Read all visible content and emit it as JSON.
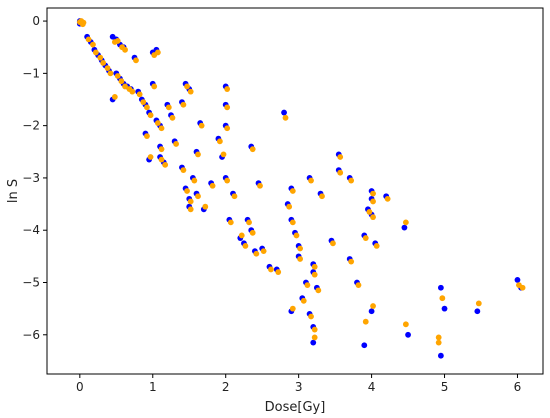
{
  "chart_data": {
    "type": "scatter",
    "title": "",
    "xlabel": "Dose[Gy]",
    "ylabel": "ln S",
    "xlim": [
      -0.45,
      6.35
    ],
    "ylim": [
      -6.75,
      0.25
    ],
    "xticks": [
      0,
      1,
      2,
      3,
      4,
      5,
      6
    ],
    "yticks": [
      0,
      -1,
      -2,
      -3,
      -4,
      -5,
      -6
    ],
    "grid": false,
    "legend": "none",
    "series": [
      {
        "color": "#0000ff",
        "points": [
          [
            0,
            0
          ],
          [
            0,
            -0.05
          ],
          [
            0.02,
            -0.02
          ],
          [
            0.03,
            -0.04
          ],
          [
            0.1,
            -0.3
          ],
          [
            0.15,
            -0.4
          ],
          [
            0.2,
            -0.55
          ],
          [
            0.25,
            -0.65
          ],
          [
            0.3,
            -0.75
          ],
          [
            0.35,
            -0.85
          ],
          [
            0.4,
            -0.95
          ],
          [
            0.45,
            -0.3
          ],
          [
            0.5,
            -0.35
          ],
          [
            0.55,
            -0.45
          ],
          [
            0.6,
            -0.5
          ],
          [
            0.5,
            -1.0
          ],
          [
            0.45,
            -1.5
          ],
          [
            0.55,
            -1.1
          ],
          [
            0.6,
            -1.2
          ],
          [
            0.65,
            -1.25
          ],
          [
            0.7,
            -1.3
          ],
          [
            0.75,
            -0.7
          ],
          [
            0.8,
            -1.35
          ],
          [
            0.85,
            -1.5
          ],
          [
            0.9,
            -1.6
          ],
          [
            0.95,
            -1.75
          ],
          [
            1.0,
            -0.6
          ],
          [
            1.05,
            -0.55
          ],
          [
            1.0,
            -1.2
          ],
          [
            1.05,
            -1.9
          ],
          [
            1.1,
            -2.0
          ],
          [
            1.1,
            -2.4
          ],
          [
            0.9,
            -2.15
          ],
          [
            0.95,
            -2.65
          ],
          [
            1.1,
            -2.6
          ],
          [
            1.15,
            -2.7
          ],
          [
            1.2,
            -1.6
          ],
          [
            1.25,
            -1.8
          ],
          [
            1.3,
            -2.3
          ],
          [
            1.4,
            -1.55
          ],
          [
            1.4,
            -2.8
          ],
          [
            1.45,
            -1.2
          ],
          [
            1.5,
            -1.3
          ],
          [
            1.45,
            -3.2
          ],
          [
            1.5,
            -3.4
          ],
          [
            1.5,
            -3.55
          ],
          [
            1.55,
            -3.0
          ],
          [
            1.6,
            -2.5
          ],
          [
            1.6,
            -3.3
          ],
          [
            1.65,
            -1.95
          ],
          [
            1.7,
            -3.6
          ],
          [
            1.8,
            -3.1
          ],
          [
            1.9,
            -2.25
          ],
          [
            1.95,
            -2.6
          ],
          [
            2.0,
            -1.25
          ],
          [
            2.0,
            -1.6
          ],
          [
            2.0,
            -2.0
          ],
          [
            2.0,
            -3.0
          ],
          [
            2.05,
            -3.8
          ],
          [
            2.1,
            -3.3
          ],
          [
            2.2,
            -4.15
          ],
          [
            2.25,
            -4.25
          ],
          [
            2.3,
            -3.8
          ],
          [
            2.35,
            -2.4
          ],
          [
            2.35,
            -4.0
          ],
          [
            2.4,
            -4.4
          ],
          [
            2.45,
            -3.1
          ],
          [
            2.5,
            -4.35
          ],
          [
            2.6,
            -4.7
          ],
          [
            2.7,
            -4.75
          ],
          [
            2.8,
            -1.75
          ],
          [
            2.85,
            -3.5
          ],
          [
            2.9,
            -3.2
          ],
          [
            2.9,
            -3.8
          ],
          [
            2.95,
            -4.05
          ],
          [
            3.0,
            -4.3
          ],
          [
            3.0,
            -4.5
          ],
          [
            2.9,
            -5.55
          ],
          [
            3.05,
            -5.3
          ],
          [
            3.1,
            -5.0
          ],
          [
            3.15,
            -5.6
          ],
          [
            3.2,
            -5.85
          ],
          [
            3.2,
            -6.15
          ],
          [
            3.2,
            -4.65
          ],
          [
            3.15,
            -3.0
          ],
          [
            3.2,
            -4.8
          ],
          [
            3.25,
            -5.1
          ],
          [
            3.3,
            -3.3
          ],
          [
            3.45,
            -4.2
          ],
          [
            3.55,
            -2.55
          ],
          [
            3.55,
            -2.85
          ],
          [
            3.7,
            -3.0
          ],
          [
            3.7,
            -4.55
          ],
          [
            3.8,
            -5.0
          ],
          [
            3.9,
            -4.1
          ],
          [
            3.9,
            -6.2
          ],
          [
            3.95,
            -3.6
          ],
          [
            4.0,
            -3.25
          ],
          [
            4.0,
            -3.4
          ],
          [
            4.0,
            -3.7
          ],
          [
            4.0,
            -5.55
          ],
          [
            4.05,
            -4.25
          ],
          [
            4.2,
            -3.35
          ],
          [
            4.45,
            -3.95
          ],
          [
            4.5,
            -6.0
          ],
          [
            4.95,
            -5.1
          ],
          [
            4.95,
            -6.4
          ],
          [
            5.0,
            -5.5
          ],
          [
            5.45,
            -5.55
          ],
          [
            6.0,
            -4.95
          ],
          [
            6.05,
            -5.1
          ]
        ]
      },
      {
        "color": "#ffa500",
        "points": [
          [
            0,
            -0.02
          ],
          [
            0.02,
            0
          ],
          [
            0.04,
            -0.06
          ],
          [
            0.05,
            -0.03
          ],
          [
            0.12,
            -0.35
          ],
          [
            0.18,
            -0.45
          ],
          [
            0.22,
            -0.6
          ],
          [
            0.28,
            -0.7
          ],
          [
            0.32,
            -0.8
          ],
          [
            0.38,
            -0.9
          ],
          [
            0.42,
            -1.0
          ],
          [
            0.48,
            -0.4
          ],
          [
            0.52,
            -0.38
          ],
          [
            0.58,
            -0.5
          ],
          [
            0.62,
            -0.55
          ],
          [
            0.52,
            -1.05
          ],
          [
            0.48,
            -1.45
          ],
          [
            0.57,
            -1.15
          ],
          [
            0.62,
            -1.25
          ],
          [
            0.68,
            -1.3
          ],
          [
            0.72,
            -1.35
          ],
          [
            0.77,
            -0.75
          ],
          [
            0.82,
            -1.4
          ],
          [
            0.87,
            -1.55
          ],
          [
            0.92,
            -1.65
          ],
          [
            0.97,
            -1.8
          ],
          [
            1.02,
            -0.65
          ],
          [
            1.07,
            -0.6
          ],
          [
            1.02,
            -1.25
          ],
          [
            1.07,
            -1.95
          ],
          [
            1.12,
            -2.05
          ],
          [
            1.12,
            -2.45
          ],
          [
            0.92,
            -2.2
          ],
          [
            0.97,
            -2.6
          ],
          [
            1.12,
            -2.65
          ],
          [
            1.17,
            -2.75
          ],
          [
            1.22,
            -1.65
          ],
          [
            1.27,
            -1.85
          ],
          [
            1.32,
            -2.35
          ],
          [
            1.42,
            -1.6
          ],
          [
            1.42,
            -2.85
          ],
          [
            1.47,
            -1.25
          ],
          [
            1.52,
            -1.35
          ],
          [
            1.47,
            -3.25
          ],
          [
            1.52,
            -3.45
          ],
          [
            1.52,
            -3.6
          ],
          [
            1.57,
            -3.05
          ],
          [
            1.62,
            -2.55
          ],
          [
            1.62,
            -3.35
          ],
          [
            1.67,
            -2.0
          ],
          [
            1.72,
            -3.55
          ],
          [
            1.82,
            -3.15
          ],
          [
            1.92,
            -2.3
          ],
          [
            1.97,
            -2.55
          ],
          [
            2.02,
            -1.3
          ],
          [
            2.02,
            -1.65
          ],
          [
            2.02,
            -2.05
          ],
          [
            2.02,
            -3.05
          ],
          [
            2.07,
            -3.85
          ],
          [
            2.12,
            -3.35
          ],
          [
            2.22,
            -4.1
          ],
          [
            2.27,
            -4.3
          ],
          [
            2.32,
            -3.85
          ],
          [
            2.37,
            -2.45
          ],
          [
            2.37,
            -4.05
          ],
          [
            2.42,
            -4.45
          ],
          [
            2.47,
            -3.15
          ],
          [
            2.52,
            -4.4
          ],
          [
            2.62,
            -4.75
          ],
          [
            2.72,
            -4.8
          ],
          [
            2.82,
            -1.85
          ],
          [
            2.87,
            -3.55
          ],
          [
            2.92,
            -3.25
          ],
          [
            2.92,
            -3.85
          ],
          [
            2.97,
            -4.1
          ],
          [
            3.02,
            -4.35
          ],
          [
            3.02,
            -4.55
          ],
          [
            2.92,
            -5.5
          ],
          [
            3.07,
            -5.35
          ],
          [
            3.12,
            -5.05
          ],
          [
            3.17,
            -5.65
          ],
          [
            3.22,
            -5.9
          ],
          [
            3.22,
            -6.05
          ],
          [
            3.22,
            -4.7
          ],
          [
            3.17,
            -3.05
          ],
          [
            3.22,
            -4.85
          ],
          [
            3.27,
            -5.15
          ],
          [
            3.32,
            -3.35
          ],
          [
            3.47,
            -4.25
          ],
          [
            3.57,
            -2.6
          ],
          [
            3.57,
            -2.9
          ],
          [
            3.72,
            -3.05
          ],
          [
            3.72,
            -4.6
          ],
          [
            3.82,
            -5.05
          ],
          [
            3.92,
            -4.15
          ],
          [
            3.92,
            -5.75
          ],
          [
            3.97,
            -3.65
          ],
          [
            4.02,
            -3.3
          ],
          [
            4.02,
            -3.45
          ],
          [
            4.02,
            -3.75
          ],
          [
            4.02,
            -5.45
          ],
          [
            4.07,
            -4.3
          ],
          [
            4.22,
            -3.4
          ],
          [
            4.47,
            -3.85
          ],
          [
            4.47,
            -5.8
          ],
          [
            4.97,
            -5.3
          ],
          [
            4.92,
            -6.05
          ],
          [
            4.92,
            -6.15
          ],
          [
            5.47,
            -5.4
          ],
          [
            6.02,
            -5.05
          ],
          [
            6.07,
            -5.1
          ]
        ]
      }
    ]
  }
}
